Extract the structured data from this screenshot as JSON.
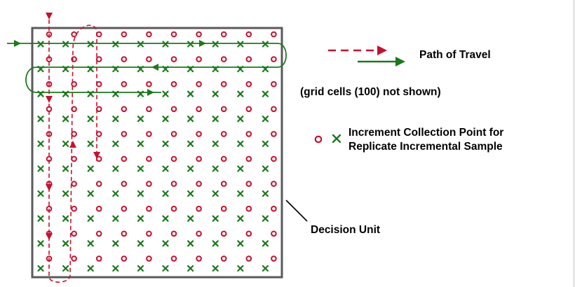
{
  "legend": {
    "path_label": "Path of Travel",
    "note": "(grid cells (100) not shown)",
    "increment_line1": "Increment Collection Point for",
    "increment_line2": "Replicate Incremental Sample"
  },
  "callout": {
    "label": "Decision Unit"
  },
  "colors": {
    "red": "#c8102e",
    "green": "#1a7a1a",
    "boundary": "#5a5a5a",
    "text": "#000000"
  },
  "icons": [
    "circle-marker-icon",
    "x-marker-icon",
    "dashed-arrow-icon",
    "solid-arrow-icon"
  ]
}
